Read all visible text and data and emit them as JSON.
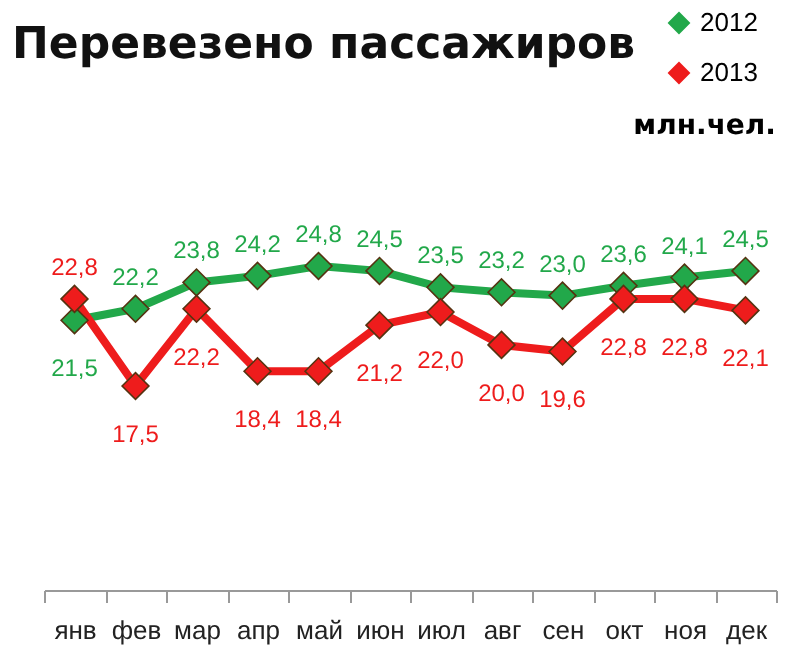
{
  "chart_data": {
    "type": "line",
    "title": "Перевезено пассажиров",
    "annotations": [
      "млн.чел."
    ],
    "categories": [
      "янв",
      "фев",
      "мар",
      "апр",
      "май",
      "июн",
      "июл",
      "авг",
      "сен",
      "окт",
      "ноя",
      "дек"
    ],
    "series": [
      {
        "name": "2012",
        "color": "#22a84a",
        "values": [
          21.5,
          22.2,
          23.8,
          24.2,
          24.8,
          24.5,
          23.5,
          23.2,
          23.0,
          23.6,
          24.1,
          24.5
        ],
        "value_labels": [
          "21,5",
          "22,2",
          "23,8",
          "24,2",
          "24,8",
          "24,5",
          "23,5",
          "23,2",
          "23,0",
          "23,6",
          "24,1",
          "24,5"
        ]
      },
      {
        "name": "2013",
        "color": "#ee1c1c",
        "values": [
          22.8,
          17.5,
          22.2,
          18.4,
          18.4,
          21.2,
          22.0,
          20.0,
          19.6,
          22.8,
          22.8,
          22.1
        ],
        "value_labels": [
          "22,8",
          "17,5",
          "22,2",
          "18,4",
          "18,4",
          "21,2",
          "22,0",
          "20,0",
          "19,6",
          "22,8",
          "22,8",
          "22,1"
        ]
      }
    ],
    "legend": "top right",
    "marker": "diamond",
    "line_style": "solid",
    "grid": false,
    "tick_labels": "x"
  }
}
